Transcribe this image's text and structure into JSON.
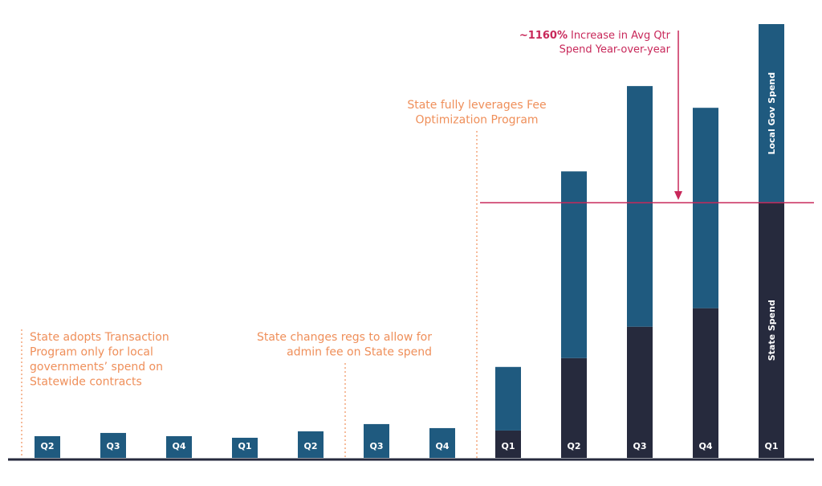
{
  "chart_data": {
    "type": "stacked_bar",
    "categories": [
      "Q2",
      "Q3",
      "Q4",
      "Q1",
      "Q2",
      "Q3",
      "Q4",
      "Q1",
      "Q2",
      "Q3",
      "Q4",
      "Q1"
    ],
    "series": [
      {
        "name": "State Spend",
        "color": "#262a3d",
        "values": [
          0,
          0,
          0,
          0,
          0,
          0,
          0,
          34,
          124,
          163,
          186,
          317
        ]
      },
      {
        "name": "Local Gov Spend",
        "color": "#1f5a7f",
        "values": [
          27,
          31,
          27,
          25,
          33,
          42,
          37,
          79,
          232,
          299,
          249,
          222
        ]
      }
    ],
    "reference_line": {
      "value": 317,
      "color": "#c8285a",
      "label_bold": "~1160%",
      "label": [
        "Increase in Avg Qtr",
        "Spend Year-over-year"
      ]
    },
    "annotations": [
      {
        "lines": [
          "State adopts Transaction",
          "Program only for local",
          "governments’ spend on",
          "Statewide contracts"
        ]
      },
      {
        "lines": [
          "State changes regs to allow for",
          "admin fee on State spend"
        ]
      },
      {
        "lines": [
          "State fully leverages Fee",
          "Optimization Program"
        ]
      }
    ]
  }
}
